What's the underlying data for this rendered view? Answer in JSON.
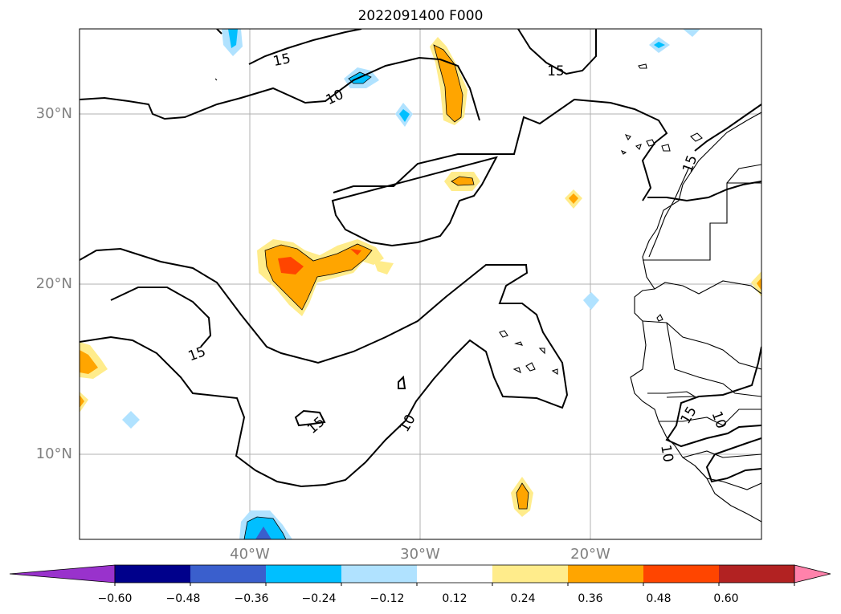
{
  "title": "2022091400 F000",
  "map": {
    "lat_ticks": [
      "30°N",
      "20°N",
      "10°N"
    ],
    "lon_ticks": [
      "40°W",
      "30°W",
      "20°W"
    ],
    "contour_labels": [
      {
        "text": "15",
        "rot": -12
      },
      {
        "text": "10",
        "rot": -25
      },
      {
        "text": "15",
        "rot": 0
      },
      {
        "text": "15",
        "rot": -70
      },
      {
        "text": "15",
        "rot": -20
      },
      {
        "text": "15",
        "rot": -40
      },
      {
        "text": "10",
        "rot": -60
      },
      {
        "text": "15",
        "rot": -60
      },
      {
        "text": "10",
        "rot": 80
      },
      {
        "text": "10",
        "rot": 70
      }
    ]
  },
  "colorbar": {
    "tick_labels": [
      "−0.60",
      "−0.48",
      "−0.36",
      "−0.24",
      "−0.12",
      "0.12",
      "0.24",
      "0.36",
      "0.48",
      "0.60"
    ],
    "colors": [
      "#9932cc",
      "#00008b",
      "#3a5fcd",
      "#00bfff",
      "#b0e2ff",
      "#ffffff",
      "#ffec8b",
      "#ffa500",
      "#ff4500",
      "#b22222",
      "#ff82ab"
    ]
  }
}
